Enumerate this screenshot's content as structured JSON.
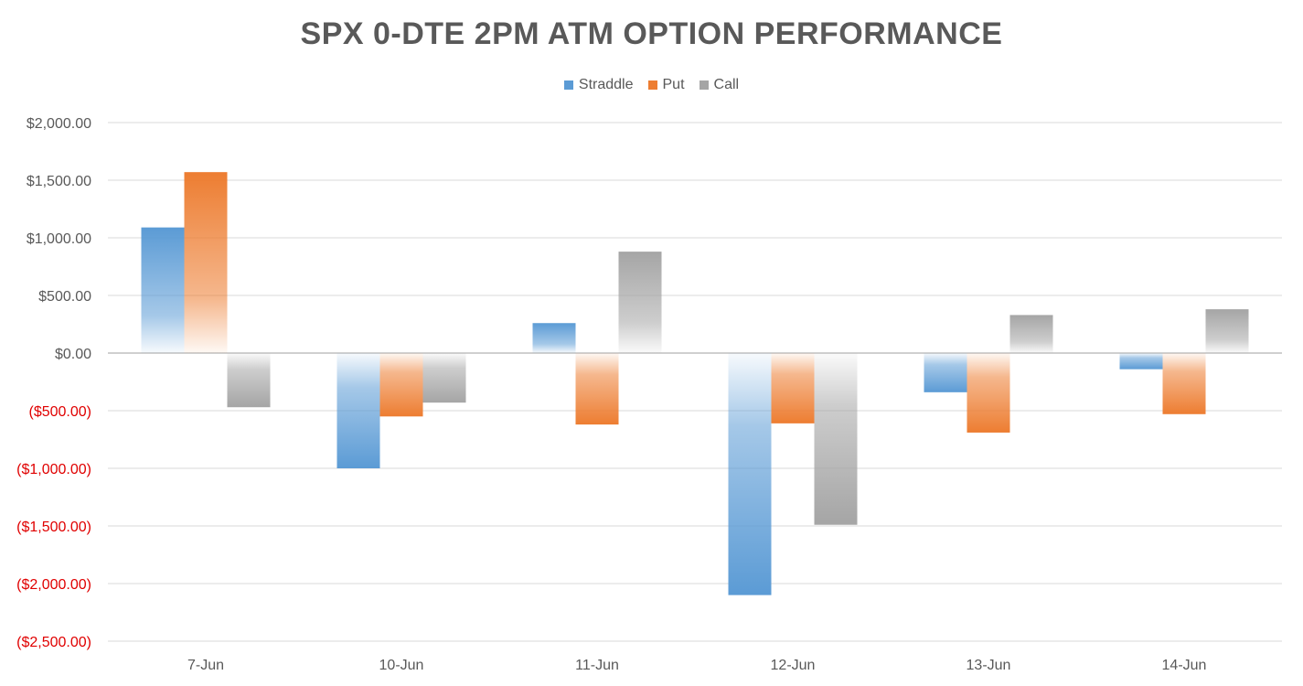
{
  "chart_data": {
    "type": "bar",
    "title": "SPX 0-DTE 2PM ATM OPTION PERFORMANCE",
    "categories": [
      "7-Jun",
      "10-Jun",
      "11-Jun",
      "12-Jun",
      "13-Jun",
      "14-Jun"
    ],
    "series": [
      {
        "name": "Straddle",
        "color": "#5b9bd5",
        "values": [
          1090,
          -1000,
          260,
          -2100,
          -340,
          -140
        ]
      },
      {
        "name": "Put",
        "color": "#ed7d31",
        "values": [
          1570,
          -550,
          -620,
          -610,
          -690,
          -530
        ]
      },
      {
        "name": "Call",
        "color": "#a5a5a5",
        "values": [
          -470,
          -430,
          880,
          -1490,
          330,
          380
        ]
      }
    ],
    "yticks": [
      "$2,000.00",
      "$1,500.00",
      "$1,000.00",
      "$500.00",
      "$0.00",
      "($500.00)",
      "($1,000.00)",
      "($1,500.00)",
      "($2,000.00)",
      "($2,500.00)"
    ],
    "ytick_values": [
      2000,
      1500,
      1000,
      500,
      0,
      -500,
      -1000,
      -1500,
      -2000,
      -2500
    ],
    "ylim": [
      -2500,
      2000
    ],
    "negative_label_color": "#e00000",
    "grid": true,
    "legend_position": "top"
  }
}
